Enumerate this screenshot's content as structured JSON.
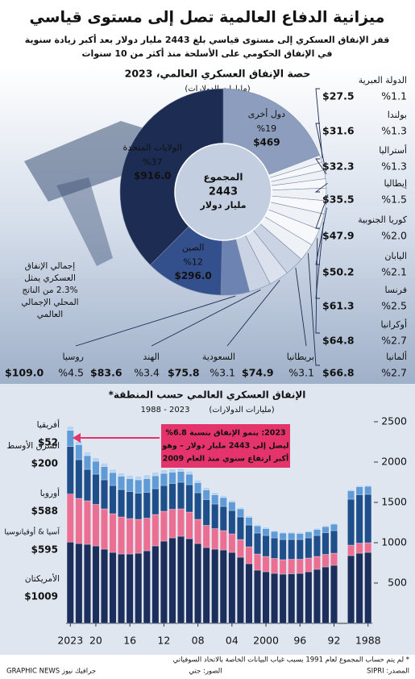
{
  "header": {
    "title": "ميزانية الدفاع العالمية تصل إلى مستوى قياسي",
    "subtitle": [
      "قفز الإنفاق العسكري إلى مستوى قياسي بلغ 2443 مليار دولار بعد أكبر زيادة سنوية",
      "في الإنفاق الحكومي على الأسلحة منذ أكثر من 10 سنوات"
    ]
  },
  "gdp_note": [
    "إجمالي الإنفاق",
    "العسكري يمثل",
    "2.3% من الناتج",
    "المحلي الإجمالي",
    "العالمي"
  ],
  "chart_data": [
    {
      "type": "pie",
      "title": "حصة الإنفاق العسكري العالمي، 2023",
      "subtitle": "(مليارات الدولارات)",
      "center_label": "المجموع",
      "total": 2443,
      "total_unit": "مليار دولار",
      "categories": [
        "دول أخرى",
        "الدولة العبرية",
        "بولندا",
        "أستراليا",
        "إيطاليا",
        "كوريا الجنوبية",
        "اليابان",
        "فرنسا",
        "أوكرانيا",
        "ألمانيا",
        "بريطانيا",
        "السعودية",
        "الهند",
        "روسيا",
        "الصين",
        "الولايات المتحدة"
      ],
      "values": [
        469,
        27.5,
        31.6,
        32.3,
        35.5,
        47.9,
        50.2,
        61.3,
        64.8,
        66.8,
        74.9,
        75.8,
        83.6,
        109.0,
        296.0,
        916.0
      ],
      "value_labels": [
        "$469",
        "$27.5",
        "$31.6",
        "$32.3",
        "$35.5",
        "$47.9",
        "$50.2",
        "$61.3",
        "$64.8",
        "$66.8",
        "$74.9",
        "$75.8",
        "$83.6",
        "$109.0",
        "$296.0",
        "$916.0"
      ],
      "share_labels": [
        "%19",
        "%1.1",
        "%1.3",
        "%1.3",
        "%1.5",
        "%2.0",
        "%2.1",
        "%2.5",
        "%2.7",
        "%2.7",
        "%3.1",
        "%3.1",
        "%3.4",
        "%4.5",
        "%12",
        "%37"
      ],
      "colors": [
        "#8d9dbd",
        "#eef1f6",
        "#f7f8fb",
        "#eef1f6",
        "#f7f8fb",
        "#eef1f6",
        "#f7f8fb",
        "#eef1f6",
        "#f7f8fb",
        "#eef1f6",
        "#c9d3e4",
        "#dbe2ee",
        "#c9d3e4",
        "#6d84b2",
        "#34508c",
        "#1c2c52"
      ]
    },
    {
      "type": "bar",
      "stacked": true,
      "title": "الإنفاق العسكري العالمي حسب المنطقة*",
      "subtitle": "(مليارات الدولارات)",
      "period": "1988 - 2023",
      "annotation": [
        "2023: ينمو الإنفاق بنسبة 6.8%",
        "ليصل إلى 2443 مليار دولار – وهو",
        "أكبر ارتفاع سنوي منذ العام 2009"
      ],
      "categories": [
        "1988",
        null,
        null,
        null,
        "92",
        null,
        null,
        null,
        "96",
        null,
        null,
        null,
        "2000",
        null,
        null,
        null,
        "04",
        null,
        null,
        null,
        "08",
        null,
        null,
        null,
        "12",
        null,
        null,
        null,
        "16",
        null,
        null,
        null,
        "20",
        null,
        null,
        "2023"
      ],
      "ylim": [
        0,
        2500
      ],
      "yticks": [
        500,
        1000,
        1500,
        2000,
        2500
      ],
      "series": [
        {
          "name": "الأمريكتان",
          "color": "#1c2f5c",
          "values": [
            880,
            870,
            840,
            null,
            720,
            700,
            670,
            640,
            620,
            615,
            610,
            620,
            640,
            660,
            740,
            820,
            880,
            910,
            920,
            940,
            990,
            1050,
            1080,
            1060,
            1020,
            960,
            900,
            870,
            860,
            860,
            880,
            920,
            960,
            980,
            990,
            1009
          ],
          "value_labels": [
            null,
            null,
            null,
            null,
            null,
            null,
            null,
            null,
            null,
            null,
            null,
            null,
            null,
            null,
            null,
            null,
            null,
            null,
            null,
            null,
            null,
            null,
            null,
            null,
            null,
            null,
            null,
            null,
            null,
            null,
            null,
            null,
            null,
            null,
            null,
            "$1009"
          ]
        },
        {
          "name": "آسيا & أوقيانوسيا",
          "color": "#ea6f92",
          "values": [
            120,
            125,
            130,
            null,
            150,
            155,
            160,
            170,
            175,
            180,
            180,
            185,
            190,
            200,
            210,
            220,
            230,
            240,
            255,
            275,
            300,
            330,
            340,
            355,
            370,
            390,
            405,
            420,
            440,
            460,
            480,
            500,
            515,
            540,
            560,
            595
          ],
          "value_labels": [
            null,
            null,
            null,
            null,
            null,
            null,
            null,
            null,
            null,
            null,
            null,
            null,
            null,
            null,
            null,
            null,
            null,
            null,
            null,
            null,
            null,
            null,
            null,
            null,
            null,
            null,
            null,
            null,
            null,
            null,
            null,
            null,
            null,
            null,
            null,
            "$595"
          ]
        },
        {
          "name": "أوروبا",
          "color": "#1f4f8a",
          "values": [
            600,
            600,
            570,
            null,
            280,
            270,
            260,
            250,
            245,
            245,
            250,
            255,
            260,
            260,
            270,
            280,
            290,
            300,
            305,
            320,
            330,
            340,
            330,
            320,
            320,
            320,
            320,
            325,
            335,
            340,
            350,
            360,
            375,
            390,
            480,
            588
          ],
          "value_labels": [
            null,
            null,
            null,
            null,
            null,
            null,
            null,
            null,
            null,
            null,
            null,
            null,
            null,
            null,
            null,
            null,
            null,
            null,
            null,
            null,
            null,
            null,
            null,
            null,
            null,
            null,
            null,
            null,
            null,
            null,
            null,
            null,
            null,
            null,
            null,
            "$588"
          ]
        },
        {
          "name": "الشرق الأوسط",
          "color": "#5f9bd6",
          "values": [
            100,
            100,
            105,
            null,
            80,
            75,
            75,
            75,
            75,
            80,
            80,
            80,
            85,
            90,
            95,
            100,
            105,
            110,
            115,
            120,
            125,
            130,
            135,
            140,
            150,
            160,
            170,
            165,
            160,
            165,
            160,
            165,
            160,
            170,
            185,
            200
          ],
          "value_labels": [
            null,
            null,
            null,
            null,
            null,
            null,
            null,
            null,
            null,
            null,
            null,
            null,
            null,
            null,
            null,
            null,
            null,
            null,
            null,
            null,
            null,
            null,
            null,
            null,
            null,
            null,
            null,
            null,
            null,
            null,
            null,
            null,
            null,
            null,
            null,
            "$200"
          ]
        },
        {
          "name": "أفريقيا",
          "color": "#b9d3ef",
          "values": [
            15,
            15,
            15,
            null,
            15,
            15,
            15,
            15,
            15,
            15,
            15,
            15,
            18,
            18,
            20,
            20,
            22,
            25,
            27,
            30,
            33,
            36,
            38,
            40,
            42,
            45,
            47,
            45,
            42,
            40,
            40,
            42,
            44,
            45,
            45,
            52
          ],
          "value_labels": [
            null,
            null,
            null,
            null,
            null,
            null,
            null,
            null,
            null,
            null,
            null,
            null,
            null,
            null,
            null,
            null,
            null,
            null,
            null,
            null,
            null,
            null,
            null,
            null,
            null,
            null,
            null,
            null,
            null,
            null,
            null,
            null,
            null,
            null,
            null,
            "$52"
          ]
        }
      ]
    }
  ],
  "footer": {
    "note": "* لم يتم حساب المجموع لعام 1991 بسبب غياب البيانات الخاصة بالاتحاد السوفياتي",
    "source": "المصدر: SIPRI",
    "photo": "الصور: جتي",
    "credit": "GRAPHIC NEWS جرافيك نيوز"
  }
}
